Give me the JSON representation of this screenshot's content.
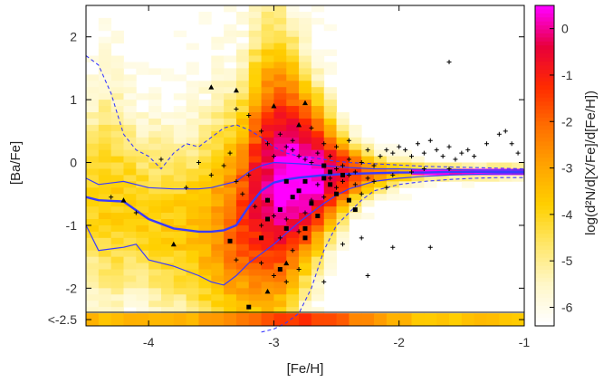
{
  "chart_data": {
    "type": "heatmap",
    "title": "",
    "xlabel": "[Fe/H]",
    "ylabel": "[Ba/Fe]",
    "colorbar_label": "log(d²N/d[X/Fe]/d[Fe/H])",
    "xlim": [
      -4.5,
      -1.0
    ],
    "ylim": [
      -2.6,
      2.5
    ],
    "x_ticks": [
      "-4",
      "-3",
      "-2",
      "-1"
    ],
    "x_tick_values": [
      -4,
      -3,
      -2,
      -1
    ],
    "y_ticks": [
      "2",
      "1",
      "0",
      "-1",
      "-2",
      "<-2.5"
    ],
    "y_tick_values": [
      2,
      1,
      0,
      -1,
      -2,
      -2.5
    ],
    "colorbar_ticks": [
      "0",
      "-1",
      "-2",
      "-3",
      "-4",
      "-5",
      "-6"
    ],
    "colorbar_range": [
      -6.4,
      0.5
    ],
    "colormap": [
      "#ffffff",
      "#fff7c8",
      "#ffe76a",
      "#ffd000",
      "#ffa400",
      "#ff6e00",
      "#ff2a00",
      "#e8003a",
      "#ff00ff"
    ],
    "curve_color": "#3a3aff",
    "series": [
      {
        "x": [
          -4.5,
          -4.4,
          -4.2,
          -4.0,
          -3.8,
          -3.6,
          -3.5,
          -3.4,
          -3.3,
          -3.2,
          -3.1,
          -3.0,
          -2.9,
          -2.8,
          -2.7,
          -2.6,
          -2.5,
          -2.4,
          -2.2,
          -2.0,
          -1.8,
          -1.6,
          -1.4,
          -1.2,
          -1.0
        ],
        "y": [
          -0.55,
          -0.6,
          -0.62,
          -0.9,
          -1.05,
          -1.1,
          -1.1,
          -1.08,
          -1.0,
          -0.7,
          -0.45,
          -0.32,
          -0.27,
          -0.24,
          -0.22,
          -0.2,
          -0.19,
          -0.18,
          -0.17,
          -0.16,
          -0.16,
          -0.15,
          -0.15,
          -0.15,
          -0.15
        ]
      },
      {
        "x": [
          -4.5,
          -4.4,
          -4.2,
          -4.0,
          -3.8,
          -3.6,
          -3.5,
          -3.4,
          -3.3,
          -3.2,
          -3.1,
          -3.0,
          -2.9,
          -2.8,
          -2.6,
          -2.4,
          -2.2,
          -2.0,
          -1.8,
          -1.6,
          -1.4,
          -1.2,
          -1.0
        ],
        "y": [
          -0.25,
          -0.35,
          -0.3,
          -0.4,
          -0.42,
          -0.42,
          -0.4,
          -0.35,
          -0.3,
          -0.15,
          -0.05,
          0.0,
          -0.01,
          -0.02,
          -0.05,
          -0.08,
          -0.1,
          -0.1,
          -0.11,
          -0.11,
          -0.12,
          -0.12,
          -0.12
        ]
      },
      {
        "x": [
          -4.5,
          -4.4,
          -4.2,
          -4.1,
          -4.0,
          -3.8,
          -3.6,
          -3.5,
          -3.4,
          -3.3,
          -3.2,
          -3.0,
          -2.8,
          -2.6,
          -2.5,
          -2.4,
          -2.2,
          -2.0,
          -1.8,
          -1.6,
          -1.4,
          -1.2,
          -1.0
        ],
        "y": [
          -1.0,
          -1.4,
          -1.35,
          -1.3,
          -1.55,
          -1.65,
          -1.8,
          -1.9,
          -1.95,
          -1.8,
          -1.6,
          -1.3,
          -0.95,
          -0.65,
          -0.52,
          -0.42,
          -0.3,
          -0.25,
          -0.22,
          -0.2,
          -0.19,
          -0.18,
          -0.18
        ]
      },
      {
        "x": [
          -4.5,
          -4.4,
          -4.3,
          -4.2,
          -4.1,
          -4.0,
          -3.9,
          -3.8,
          -3.7,
          -3.6,
          -3.5,
          -3.4,
          -3.3,
          -3.2,
          -3.1,
          -3.0,
          -2.9,
          -2.8,
          -2.7,
          -2.6,
          -2.5,
          -2.4,
          -2.2,
          -2.0,
          -1.8,
          -1.6,
          -1.4,
          -1.2,
          -1.0
        ],
        "y": [
          1.7,
          1.55,
          1.1,
          0.45,
          0.2,
          0.1,
          -0.1,
          0.15,
          0.3,
          0.25,
          0.4,
          0.55,
          0.6,
          0.52,
          0.4,
          0.25,
          0.15,
          0.1,
          0.08,
          0.05,
          0.02,
          0.0,
          -0.02,
          -0.04,
          -0.06,
          -0.07,
          -0.08,
          -0.09,
          -0.1
        ]
      },
      {
        "x": [
          -3.1,
          -3.0,
          -2.9,
          -2.8,
          -2.7,
          -2.6,
          -2.5,
          -2.4,
          -2.3,
          -2.2,
          -2.0,
          -1.8,
          -1.6,
          -1.4,
          -1.2,
          -1.0
        ],
        "y": [
          -2.7,
          -2.65,
          -2.55,
          -2.4,
          -2.0,
          -1.4,
          -1.0,
          -0.8,
          -0.6,
          -0.45,
          -0.35,
          -0.3,
          -0.27,
          -0.25,
          -0.24,
          -0.24
        ]
      }
    ],
    "crosses": [
      [
        -1.6,
        1.6
      ],
      [
        -3.3,
        0.85
      ],
      [
        -3.2,
        0.75
      ],
      [
        -3.1,
        0.5
      ],
      [
        -2.95,
        0.45
      ],
      [
        -3.05,
        0.3
      ],
      [
        -2.9,
        0.25
      ],
      [
        -2.85,
        0.2
      ],
      [
        -2.8,
        0.1
      ],
      [
        -2.75,
        0.05
      ],
      [
        -2.7,
        0.0
      ],
      [
        -2.65,
        0.15
      ],
      [
        -2.6,
        -0.05
      ],
      [
        -2.55,
        0.1
      ],
      [
        -2.5,
        -0.1
      ],
      [
        -2.45,
        -0.05
      ],
      [
        -2.4,
        0.05
      ],
      [
        -2.35,
        -0.15
      ],
      [
        -2.3,
        0.0
      ],
      [
        -2.25,
        0.2
      ],
      [
        -2.2,
        -0.05
      ],
      [
        -2.15,
        0.1
      ],
      [
        -2.1,
        0.2
      ],
      [
        -2.05,
        0.15
      ],
      [
        -2.0,
        0.25
      ],
      [
        -1.95,
        0.2
      ],
      [
        -1.9,
        0.1
      ],
      [
        -1.85,
        0.3
      ],
      [
        -1.8,
        0.15
      ],
      [
        -1.75,
        0.35
      ],
      [
        -1.7,
        0.2
      ],
      [
        -1.65,
        0.1
      ],
      [
        -1.6,
        0.25
      ],
      [
        -1.55,
        0.05
      ],
      [
        -1.5,
        0.15
      ],
      [
        -1.45,
        0.2
      ],
      [
        -1.4,
        0.1
      ],
      [
        -1.3,
        0.3
      ],
      [
        -1.2,
        0.45
      ],
      [
        -1.15,
        0.5
      ],
      [
        -1.05,
        0.15
      ],
      [
        -1.1,
        0.3
      ],
      [
        -3.3,
        -0.3
      ],
      [
        -3.25,
        -0.5
      ],
      [
        -3.2,
        -0.2
      ],
      [
        -3.15,
        -0.7
      ],
      [
        -3.1,
        -1.0
      ],
      [
        -3.05,
        -0.6
      ],
      [
        -3.0,
        -0.85
      ],
      [
        -2.95,
        -1.2
      ],
      [
        -2.9,
        -0.9
      ],
      [
        -2.85,
        -1.4
      ],
      [
        -2.8,
        -1.1
      ],
      [
        -2.75,
        -0.8
      ],
      [
        -2.7,
        -0.6
      ],
      [
        -2.65,
        -0.35
      ],
      [
        -2.6,
        -0.55
      ],
      [
        -2.55,
        -0.25
      ],
      [
        -2.5,
        -0.4
      ],
      [
        -2.45,
        -0.3
      ],
      [
        -2.4,
        -0.2
      ],
      [
        -2.35,
        -0.35
      ],
      [
        -2.3,
        -0.5
      ],
      [
        -2.25,
        -0.25
      ],
      [
        -2.2,
        -0.3
      ],
      [
        -2.1,
        -0.4
      ],
      [
        -2.05,
        -0.2
      ],
      [
        -1.9,
        -0.15
      ],
      [
        -1.8,
        -0.1
      ],
      [
        -1.6,
        -0.1
      ],
      [
        -1.75,
        -1.35
      ],
      [
        -2.05,
        -1.35
      ],
      [
        -3.1,
        -1.6
      ],
      [
        -3.0,
        -1.8
      ],
      [
        -2.9,
        -1.9
      ],
      [
        -2.8,
        -1.7
      ],
      [
        -3.3,
        -1.55
      ],
      [
        -2.6,
        -1.9
      ],
      [
        -3.4,
        -0.05
      ],
      [
        -3.35,
        0.15
      ],
      [
        -3.6,
        0.0
      ],
      [
        -3.7,
        -0.4
      ],
      [
        -3.5,
        -0.2
      ],
      [
        -4.1,
        -0.8
      ],
      [
        -4.3,
        -0.55
      ],
      [
        -3.9,
        0.05
      ],
      [
        -2.25,
        -1.8
      ],
      [
        -2.45,
        -1.3
      ],
      [
        -2.3,
        -1.2
      ],
      [
        -3.0,
        0.1
      ],
      [
        -2.85,
        0.35
      ],
      [
        -2.7,
        0.55
      ],
      [
        -2.6,
        0.3
      ],
      [
        -2.5,
        0.25
      ],
      [
        -2.4,
        0.35
      ]
    ],
    "squares": [
      [
        -2.9,
        -0.3
      ],
      [
        -2.85,
        -0.55
      ],
      [
        -2.8,
        -0.45
      ],
      [
        -2.75,
        -0.3
      ],
      [
        -2.7,
        -0.65
      ],
      [
        -2.6,
        -0.25
      ],
      [
        -2.55,
        -0.35
      ],
      [
        -2.5,
        -0.5
      ],
      [
        -2.4,
        -0.6
      ],
      [
        -2.35,
        -0.75
      ],
      [
        -2.65,
        -0.85
      ],
      [
        -2.75,
        -1.05
      ],
      [
        -2.95,
        -0.75
      ],
      [
        -2.9,
        -1.05
      ],
      [
        -3.05,
        -0.9
      ],
      [
        -3.1,
        -1.2
      ],
      [
        -3.35,
        -1.25
      ],
      [
        -2.75,
        -1.2
      ],
      [
        -2.95,
        -1.7
      ],
      [
        -3.2,
        -2.3
      ],
      [
        -2.55,
        -0.15
      ],
      [
        -2.45,
        -0.2
      ],
      [
        -2.6,
        -0.05
      ],
      [
        -3.05,
        -0.6
      ]
    ],
    "triangles": [
      [
        -3.5,
        1.2
      ],
      [
        -3.3,
        1.15
      ],
      [
        -3.0,
        0.9
      ],
      [
        -2.8,
        0.6
      ],
      [
        -2.75,
        0.95
      ],
      [
        -4.2,
        -0.6
      ],
      [
        -3.8,
        -1.3
      ],
      [
        -2.9,
        -1.6
      ],
      [
        -3.05,
        -2.05
      ]
    ]
  }
}
